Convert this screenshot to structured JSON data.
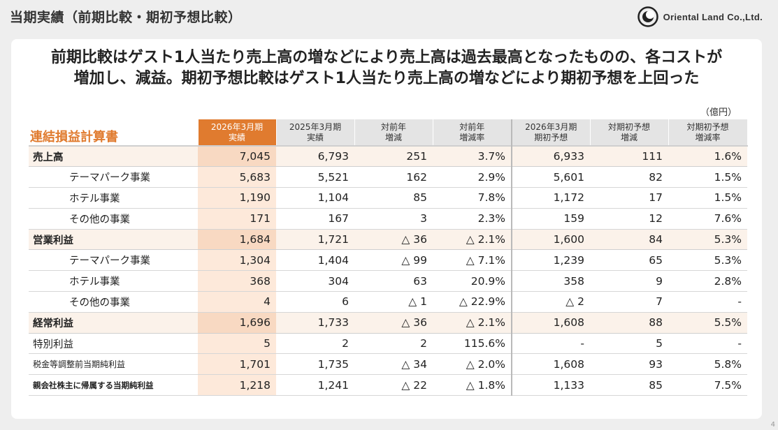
{
  "page": {
    "title": "当期実績（前期比較・期初予想比較）",
    "company": "Oriental Land Co.,Ltd.",
    "page_number": "4"
  },
  "headline": {
    "line1": "前期比較はゲスト1人当たり売上高の増などにより売上高は過去最高となったものの、各コストが",
    "line2": "増加し、減益。期初予想比較はゲスト1人当たり売上高の増などにより期初予想を上回った"
  },
  "table": {
    "section_title": "連結損益計算書",
    "unit": "（億円）",
    "headers": [
      "2026年3月期\n実績",
      "2025年3月期\n実績",
      "対前年\n増減",
      "対前年\n増減率",
      "2026年3月期\n期初予想",
      "対期初予想\n増減",
      "対期初予想\n増減率"
    ],
    "rows": [
      {
        "label": "売上高",
        "style": "major",
        "values": [
          "7,045",
          "6,793",
          "251",
          "3.7%",
          "6,933",
          "111",
          "1.6%"
        ]
      },
      {
        "label": "テーマパーク事業",
        "style": "sub",
        "values": [
          "5,683",
          "5,521",
          "162",
          "2.9%",
          "5,601",
          "82",
          "1.5%"
        ]
      },
      {
        "label": "ホテル事業",
        "style": "sub",
        "values": [
          "1,190",
          "1,104",
          "85",
          "7.8%",
          "1,172",
          "17",
          "1.5%"
        ]
      },
      {
        "label": "その他の事業",
        "style": "sub",
        "values": [
          "171",
          "167",
          "3",
          "2.3%",
          "159",
          "12",
          "7.6%"
        ]
      },
      {
        "label": "営業利益",
        "style": "major",
        "values": [
          "1,684",
          "1,721",
          "△ 36",
          "△ 2.1%",
          "1,600",
          "84",
          "5.3%"
        ]
      },
      {
        "label": "テーマパーク事業",
        "style": "sub",
        "values": [
          "1,304",
          "1,404",
          "△ 99",
          "△ 7.1%",
          "1,239",
          "65",
          "5.3%"
        ]
      },
      {
        "label": "ホテル事業",
        "style": "sub",
        "values": [
          "368",
          "304",
          "63",
          "20.9%",
          "358",
          "9",
          "2.8%"
        ]
      },
      {
        "label": "その他の事業",
        "style": "sub",
        "values": [
          "4",
          "6",
          "△ 1",
          "△ 22.9%",
          "△ 2",
          "7",
          "-"
        ]
      },
      {
        "label": "経常利益",
        "style": "major",
        "values": [
          "1,696",
          "1,733",
          "△ 36",
          "△ 2.1%",
          "1,608",
          "88",
          "5.5%"
        ]
      },
      {
        "label": "特別利益",
        "style": "plain",
        "values": [
          "5",
          "2",
          "2",
          "115.6%",
          "-",
          "5",
          "-"
        ]
      },
      {
        "label": "税金等調整前当期純利益",
        "style": "small",
        "values": [
          "1,701",
          "1,735",
          "△ 34",
          "△ 2.0%",
          "1,608",
          "93",
          "5.8%"
        ]
      },
      {
        "label": "親会社株主に帰属する当期純利益",
        "style": "tiny",
        "values": [
          "1,218",
          "1,241",
          "△ 22",
          "△ 1.8%",
          "1,133",
          "85",
          "7.5%"
        ]
      }
    ]
  },
  "colors": {
    "accent": "#e07b2f",
    "current_column": "#fde9da",
    "major_row": "#fbf2ea",
    "header_bg": "#e4e4e4"
  },
  "icons": {
    "logo": "oriental-land-logo-icon"
  }
}
